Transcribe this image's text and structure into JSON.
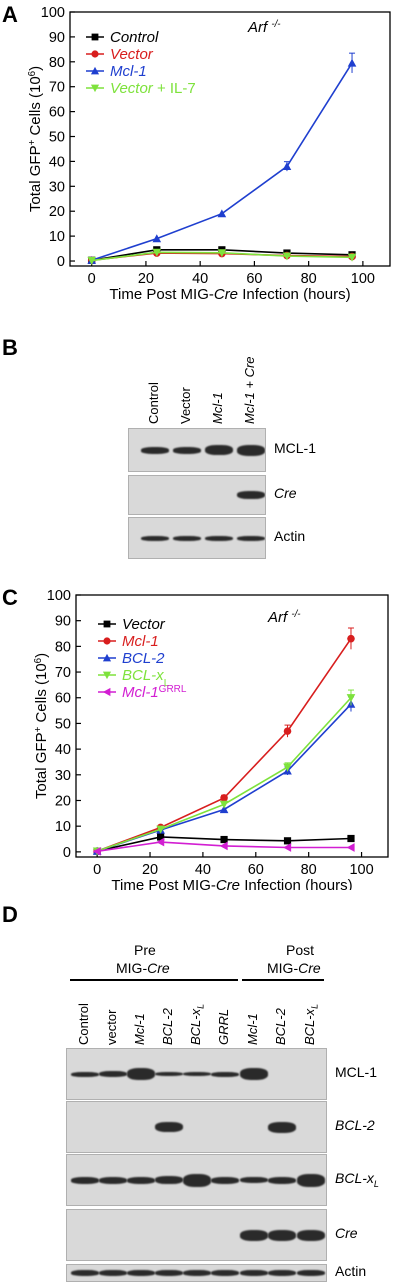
{
  "panelA": {
    "letter": "A",
    "annotation": "Arf -/-",
    "ylabel": "Total GFP+ Cells (10^6)",
    "xlabel": "Time Post MIG-Cre Infection (hours)",
    "legend": [
      "Control",
      "Vector",
      "Mcl-1",
      "Vector + IL-7"
    ]
  },
  "panelB": {
    "letter": "B",
    "lanes": [
      "Control",
      "Vector",
      "Mcl-1",
      "Mcl-1 + Cre"
    ],
    "rows": [
      "MCL-1",
      "Cre",
      "Actin"
    ]
  },
  "panelC": {
    "letter": "C",
    "annotation": "Arf -/-",
    "ylabel": "Total GFP+ Cells (10^6)",
    "xlabel": "Time Post MIG-Cre Infection (hours)",
    "legend": [
      "Vector",
      "Mcl-1",
      "BCL-2",
      "BCL-xL",
      "Mcl-1GRRL"
    ]
  },
  "panelD": {
    "letter": "D",
    "group_pre": [
      "Pre",
      "MIG-Cre"
    ],
    "group_post": [
      "Post",
      "MIG-Cre"
    ],
    "lanes": [
      "Control",
      "vector",
      "Mcl-1",
      "BCL-2",
      "BCL-xL",
      "GRRL",
      "Mcl-1",
      "BCL-2",
      "BCL-xL"
    ],
    "rows": [
      "MCL-1",
      "BCL-2",
      "BCL-xL",
      "Cre",
      "Actin"
    ]
  },
  "chart_data": [
    {
      "type": "line",
      "xlabel": "Time Post MIG-Cre Infection (hours)",
      "ylabel": "Total GFP+ Cells (10^6)",
      "xlim": [
        -8,
        110
      ],
      "ylim": [
        -2,
        100
      ],
      "xticks": [
        0,
        20,
        40,
        60,
        80,
        100
      ],
      "yticks": [
        0,
        10,
        20,
        30,
        40,
        50,
        60,
        70,
        80,
        90,
        100
      ],
      "x": [
        0,
        24,
        48,
        72,
        96
      ],
      "series": [
        {
          "name": "Control",
          "color": "#000000",
          "marker": "square",
          "values": [
            0.3,
            4.5,
            4.5,
            3.2,
            2.5
          ]
        },
        {
          "name": "Vector",
          "color": "#d81e1e",
          "marker": "circle",
          "values": [
            0.3,
            3.2,
            3.0,
            2.2,
            1.8
          ]
        },
        {
          "name": "Mcl-1",
          "color": "#1f3fcf",
          "marker": "triangle-up",
          "values": [
            0.3,
            9,
            19,
            38,
            79.5
          ]
        },
        {
          "name": "Vector + IL-7",
          "color": "#7ee23c",
          "marker": "triangle-down",
          "values": [
            0.2,
            3.5,
            3.3,
            2.0,
            1.5
          ]
        }
      ]
    },
    {
      "type": "line",
      "xlabel": "Time Post MIG-Cre Infection (hours)",
      "ylabel": "Total GFP+ Cells (10^6)",
      "xlim": [
        -8,
        110
      ],
      "ylim": [
        -2,
        100
      ],
      "xticks": [
        0,
        20,
        40,
        60,
        80,
        100
      ],
      "yticks": [
        0,
        10,
        20,
        30,
        40,
        50,
        60,
        70,
        80,
        90,
        100
      ],
      "x": [
        0,
        24,
        48,
        72,
        96
      ],
      "series": [
        {
          "name": "Vector",
          "color": "#000000",
          "marker": "square",
          "values": [
            0.3,
            5.8,
            4.8,
            4.3,
            5.2
          ]
        },
        {
          "name": "Mcl-1",
          "color": "#d81e1e",
          "marker": "circle",
          "values": [
            0.3,
            9.5,
            21,
            47,
            83
          ]
        },
        {
          "name": "BCL-2",
          "color": "#1f3fcf",
          "marker": "triangle-up",
          "values": [
            0.3,
            8.5,
            16.5,
            31.5,
            57.5
          ]
        },
        {
          "name": "BCL-xL",
          "color": "#7ee23c",
          "marker": "triangle-down",
          "values": [
            0.3,
            8.8,
            18.5,
            33,
            60
          ]
        },
        {
          "name": "Mcl-1GRRL",
          "color": "#d21ed2",
          "marker": "triangle-left",
          "values": [
            0.2,
            3.8,
            2.3,
            1.7,
            1.7
          ]
        }
      ]
    }
  ]
}
